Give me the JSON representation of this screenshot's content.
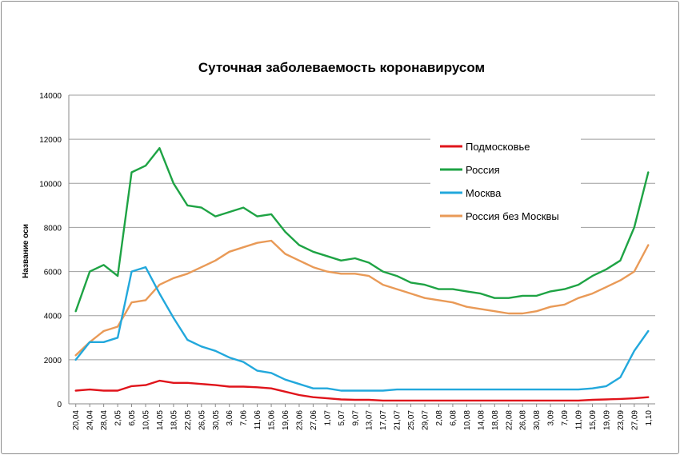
{
  "chart_data": {
    "type": "line",
    "title": "Суточная заболеваемость коронавирусом",
    "xlabel": "",
    "ylabel": "Название оси",
    "ylim": [
      0,
      14000
    ],
    "yticks": [
      0,
      2000,
      4000,
      6000,
      8000,
      10000,
      12000,
      14000
    ],
    "grid": true,
    "legend_position": "top-right",
    "x": [
      "20.04",
      "24.04",
      "28.04",
      "2.05",
      "6.05",
      "10.05",
      "14.05",
      "18.05",
      "22.05",
      "26.05",
      "30.05",
      "3.06",
      "7.06",
      "11.06",
      "15.06",
      "19.06",
      "23.06",
      "27.06",
      "1.07",
      "5.07",
      "9.07",
      "13.07",
      "17.07",
      "21.07",
      "25.07",
      "29.07",
      "2.08",
      "6.08",
      "10.08",
      "14.08",
      "18.08",
      "22.08",
      "26.08",
      "30.08",
      "3.09",
      "7.09",
      "11.09",
      "15.09",
      "19.09",
      "23.09",
      "27.09",
      "1.10"
    ],
    "x_ticks": [
      "20,04",
      "24,04",
      "28,04",
      "2,05",
      "6,05",
      "10,05",
      "14,05",
      "18,05",
      "22,05",
      "26,05",
      "30,05",
      "3,06",
      "7,06",
      "11,06",
      "15,06",
      "19,06",
      "23,06",
      "27,06",
      "1,07",
      "5,07",
      "9,07",
      "13,07",
      "17,07",
      "21,07",
      "25,07",
      "29,07",
      "2,08",
      "6,08",
      "10,08",
      "14,08",
      "18,08",
      "22,08",
      "26,08",
      "30,08",
      "3,09",
      "7,09",
      "11,09",
      "15,09",
      "19,09",
      "23,09",
      "27,09",
      "1,10"
    ],
    "series": [
      {
        "name": "Подмосковье",
        "color": "#e0141b",
        "values": [
          600,
          650,
          600,
          600,
          800,
          850,
          1050,
          950,
          950,
          900,
          850,
          780,
          780,
          750,
          700,
          550,
          400,
          300,
          250,
          200,
          180,
          180,
          150,
          150,
          150,
          150,
          150,
          150,
          150,
          150,
          150,
          150,
          150,
          150,
          150,
          150,
          150,
          180,
          200,
          220,
          250,
          300
        ]
      },
      {
        "name": "Россия",
        "color": "#1ea344",
        "values": [
          4200,
          6000,
          6300,
          5800,
          10500,
          10800,
          11600,
          10000,
          9000,
          8900,
          8500,
          8700,
          8900,
          8500,
          8600,
          7800,
          7200,
          6900,
          6700,
          6500,
          6600,
          6400,
          6000,
          5800,
          5500,
          5400,
          5200,
          5200,
          5100,
          5000,
          4800,
          4800,
          4900,
          4900,
          5100,
          5200,
          5400,
          5800,
          6100,
          6500,
          8000,
          10500
        ]
      },
      {
        "name": "Москва",
        "color": "#22a8dc",
        "values": [
          2000,
          2800,
          2800,
          3000,
          6000,
          6200,
          5000,
          3900,
          2900,
          2600,
          2400,
          2100,
          1900,
          1500,
          1400,
          1100,
          900,
          700,
          700,
          600,
          600,
          600,
          600,
          650,
          650,
          650,
          650,
          650,
          650,
          650,
          650,
          650,
          650,
          650,
          650,
          650,
          650,
          700,
          800,
          1200,
          2400,
          3300
        ]
      },
      {
        "name": "Россия без Москвы",
        "color": "#e99a57",
        "values": [
          2200,
          2800,
          3300,
          3500,
          4600,
          4700,
          5400,
          5700,
          5900,
          6200,
          6500,
          6900,
          7100,
          7300,
          7400,
          6800,
          6500,
          6200,
          6000,
          5900,
          5900,
          5800,
          5400,
          5200,
          5000,
          4800,
          4700,
          4600,
          4400,
          4300,
          4200,
          4100,
          4100,
          4200,
          4400,
          4500,
          4800,
          5000,
          5300,
          5600,
          6000,
          7200
        ]
      }
    ]
  }
}
